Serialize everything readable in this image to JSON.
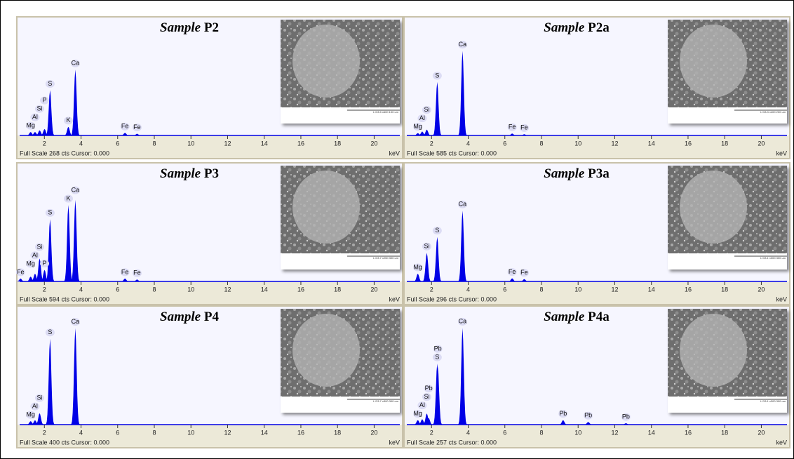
{
  "chart_data": [
    {
      "type": "spectrum",
      "title_lead": "Sample",
      "title": "P2",
      "xlabel": "keV",
      "footer": "Full Scale 268 cts Cursor: 0.000",
      "micrograph_caption": "L D3.5 x600 100 um",
      "color": "#0000e6",
      "xlim": [
        0.65,
        21.4
      ],
      "xticks": [
        2,
        4,
        6,
        8,
        10,
        12,
        14,
        16,
        18,
        20
      ],
      "ylim": [
        0,
        268
      ],
      "peak_labels": [
        "Mg",
        "Al",
        "Si",
        "P",
        "S",
        "K",
        "Ca",
        "Fe",
        "Fe"
      ],
      "x": [
        1.25,
        1.49,
        1.74,
        2.01,
        2.31,
        3.31,
        3.69,
        6.4,
        7.06
      ],
      "values": [
        8,
        8,
        12,
        15,
        106,
        20,
        154,
        6,
        4
      ]
    },
    {
      "type": "spectrum",
      "title_lead": "Sample",
      "title": "P2a",
      "xlabel": "keV",
      "footer": "Full Scale 585 cts Cursor: 0.000",
      "micrograph_caption": "L D3.3 x400 200 um",
      "color": "#0000e6",
      "xlim": [
        0.65,
        21.4
      ],
      "xticks": [
        2,
        4,
        6,
        8,
        10,
        12,
        14,
        16,
        18,
        20
      ],
      "ylim": [
        0,
        585
      ],
      "peak_labels": [
        "Mg",
        "Al",
        "Si",
        "S",
        "Ca",
        "Fe",
        "Fe"
      ],
      "x": [
        1.25,
        1.49,
        1.74,
        2.31,
        3.69,
        6.4,
        7.06
      ],
      "values": [
        12,
        20,
        30,
        273,
        432,
        10,
        6
      ]
    },
    {
      "type": "spectrum",
      "title_lead": "Sample",
      "title": "P3",
      "xlabel": "keV",
      "footer": "Full Scale 594 cts Cursor: 0.000",
      "micrograph_caption": "L D3.7 x250 300 um",
      "color": "#0000e6",
      "xlim": [
        0.65,
        21.4
      ],
      "xticks": [
        2,
        4,
        6,
        8,
        10,
        12,
        14,
        16,
        18,
        20
      ],
      "ylim": [
        0,
        594
      ],
      "peak_labels": [
        "Fe",
        "Mg",
        "Al",
        "Si",
        "P",
        "S",
        "K",
        "Ca",
        "Fe",
        "Fe"
      ],
      "x": [
        0.7,
        1.25,
        1.49,
        1.74,
        2.01,
        2.31,
        3.31,
        3.69,
        6.4,
        7.06
      ],
      "values": [
        15,
        25,
        40,
        119,
        60,
        323,
        397,
        423,
        15,
        10
      ]
    },
    {
      "type": "spectrum",
      "title_lead": "Sample",
      "title": "P3a",
      "xlabel": "keV",
      "footer": "Full Scale 296 cts Cursor: 0.000",
      "micrograph_caption": "L D3.1 x300 300 um",
      "color": "#0000e6",
      "xlim": [
        0.65,
        21.4
      ],
      "xticks": [
        2,
        4,
        6,
        8,
        10,
        12,
        14,
        16,
        18,
        20
      ],
      "ylim": [
        0,
        296
      ],
      "peak_labels": [
        "Mg",
        "Si",
        "S",
        "Ca",
        "Fe",
        "Fe"
      ],
      "x": [
        1.25,
        1.74,
        2.31,
        3.69,
        6.4,
        7.06
      ],
      "values": [
        20,
        74,
        115,
        183,
        8,
        6
      ]
    },
    {
      "type": "spectrum",
      "title_lead": "Sample",
      "title": "P4",
      "xlabel": "keV",
      "footer": "Full Scale 400 cts Cursor: 0.000",
      "micrograph_caption": "L D3.7 x300 300 um",
      "color": "#0000e6",
      "xlim": [
        0.65,
        21.4
      ],
      "xticks": [
        2,
        4,
        6,
        8,
        10,
        12,
        14,
        16,
        18,
        20
      ],
      "ylim": [
        0,
        400
      ],
      "peak_labels": [
        "Mg",
        "Al",
        "Si",
        "S",
        "Ca"
      ],
      "x": [
        1.25,
        1.49,
        1.74,
        2.31,
        3.69
      ],
      "values": [
        12,
        15,
        40,
        300,
        337
      ]
    },
    {
      "type": "spectrum",
      "title_lead": "Sample",
      "title": "P4a",
      "xlabel": "keV",
      "footer": "Full Scale 257 cts Cursor: 0.000",
      "micrograph_caption": "L D3.1 x300 300 um",
      "color": "#0000e6",
      "xlim": [
        0.65,
        21.4
      ],
      "xticks": [
        2,
        4,
        6,
        8,
        10,
        12,
        14,
        16,
        18,
        20
      ],
      "ylim": [
        0,
        257
      ],
      "peak_labels": [
        "Mg",
        "Al",
        "Si",
        "Pb",
        "S",
        "Pb",
        "Ca",
        "Pb",
        "Pb",
        "Pb"
      ],
      "x": [
        1.25,
        1.49,
        1.74,
        1.84,
        2.31,
        2.34,
        3.69,
        9.18,
        10.55,
        12.61
      ],
      "values": [
        10,
        12,
        25,
        15,
        137,
        130,
        217,
        10,
        6,
        3
      ]
    }
  ]
}
